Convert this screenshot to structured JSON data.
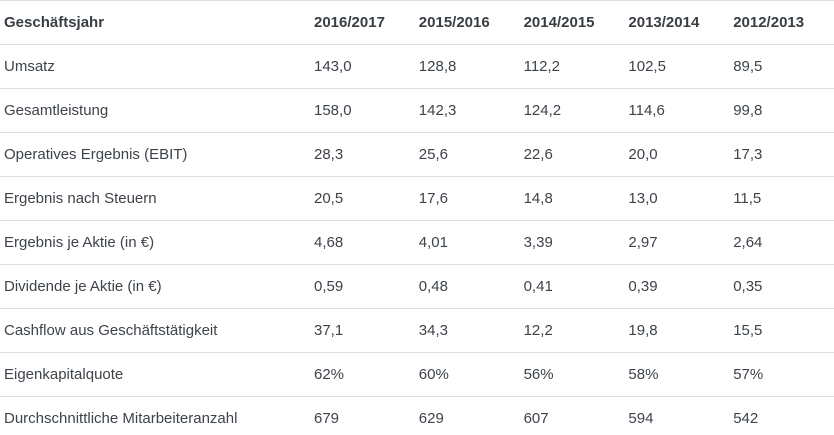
{
  "colors": {
    "text": "#3d434a",
    "header_text": "#383e44",
    "border": "#dddddd",
    "background": "#ffffff"
  },
  "chart_data": {
    "type": "table",
    "title": "Geschäftsjahr",
    "columns": [
      "2016/2017",
      "2015/2016",
      "2014/2015",
      "2013/2014",
      "2012/2013"
    ],
    "rows": [
      {
        "label": "Umsatz",
        "values": [
          "143,0",
          "128,8",
          "112,2",
          "102,5",
          "89,5"
        ]
      },
      {
        "label": "Gesamtleistung",
        "values": [
          "158,0",
          "142,3",
          "124,2",
          "114,6",
          "99,8"
        ]
      },
      {
        "label": "Operatives Ergebnis (EBIT)",
        "values": [
          "28,3",
          "25,6",
          "22,6",
          "20,0",
          "17,3"
        ]
      },
      {
        "label": "Ergebnis nach Steuern",
        "values": [
          "20,5",
          "17,6",
          "14,8",
          "13,0",
          "11,5"
        ]
      },
      {
        "label": "Ergebnis je Aktie (in €)",
        "values": [
          "4,68",
          "4,01",
          "3,39",
          "2,97",
          "2,64"
        ]
      },
      {
        "label": "Dividende je Aktie (in €)",
        "values": [
          "0,59",
          "0,48",
          "0,41",
          "0,39",
          "0,35"
        ]
      },
      {
        "label": "Cashflow aus Geschäftstätigkeit",
        "values": [
          "37,1",
          "34,3",
          "12,2",
          "19,8",
          "15,5"
        ]
      },
      {
        "label": "Eigenkapitalquote",
        "values": [
          "62%",
          "60%",
          "56%",
          "58%",
          "57%"
        ]
      },
      {
        "label": "Durchschnittliche Mitarbeiteranzahl",
        "values": [
          "679",
          "629",
          "607",
          "594",
          "542"
        ]
      }
    ]
  }
}
